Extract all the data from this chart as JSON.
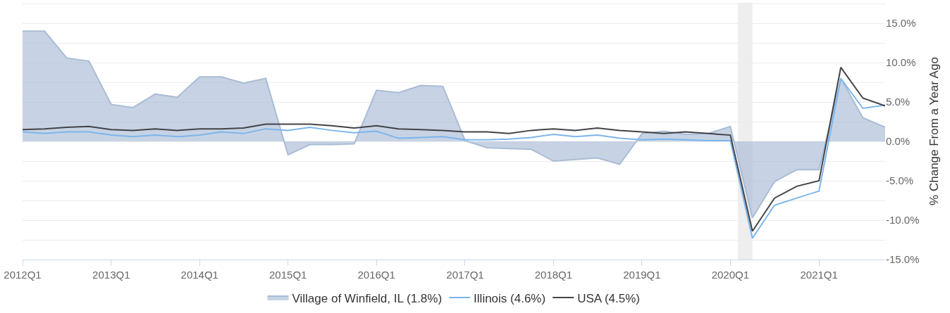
{
  "chart_data": {
    "type": "line",
    "ylabel": "% Change From a Year Ago",
    "x": [
      "2012-01",
      "2012-04",
      "2012-07",
      "2012-10",
      "2013-01",
      "2013-04",
      "2013-07",
      "2013-10",
      "2014-01",
      "2014-04",
      "2014-07",
      "2014-10",
      "2015-01",
      "2015-04",
      "2015-07",
      "2015-10",
      "2016-01",
      "2016-04",
      "2016-07",
      "2016-10",
      "2017-01",
      "2017-04",
      "2017-07",
      "2017-10",
      "2018-01",
      "2018-04",
      "2018-07",
      "2018-10",
      "2019-01",
      "2019-04",
      "2019-07",
      "2019-10",
      "2020-01",
      "2020-04",
      "2020-07",
      "2020-10",
      "2021-01",
      "2021-04",
      "2021-07",
      "2021-10"
    ],
    "series": [
      {
        "name": "Village of Winfield, IL (1.8%)",
        "type": "area",
        "color": "#a9bcd6",
        "values": [
          14.0,
          14.0,
          10.6,
          10.2,
          4.7,
          4.3,
          6.0,
          5.6,
          8.2,
          8.2,
          7.4,
          8.0,
          -1.7,
          -0.4,
          -0.4,
          -0.3,
          6.5,
          6.2,
          7.1,
          7.0,
          0.1,
          -0.8,
          -0.9,
          -1.0,
          -2.5,
          -2.3,
          -2.1,
          -2.9,
          1.0,
          1.3,
          0.9,
          1.0,
          1.9,
          -9.7,
          -5.1,
          -3.6,
          -3.6,
          8.0,
          3.0,
          1.8
        ]
      },
      {
        "name": "Illinois (4.6%)",
        "color": "#7cb5ec",
        "values": [
          1.2,
          1.0,
          1.2,
          1.2,
          0.8,
          0.6,
          0.8,
          0.6,
          0.8,
          1.2,
          1.0,
          1.6,
          1.4,
          1.8,
          1.4,
          1.1,
          1.3,
          0.4,
          0.5,
          0.6,
          0.2,
          0.2,
          0.3,
          0.5,
          0.9,
          0.6,
          0.8,
          0.4,
          0.2,
          0.3,
          0.2,
          0.1,
          0.1,
          -12.3,
          -8.1,
          -7.2,
          -6.3,
          8.0,
          4.2,
          4.6
        ]
      },
      {
        "name": "USA (4.5%)",
        "color": "#434348",
        "values": [
          1.5,
          1.6,
          1.8,
          1.9,
          1.5,
          1.4,
          1.6,
          1.4,
          1.6,
          1.6,
          1.7,
          2.2,
          2.2,
          2.2,
          2.0,
          1.7,
          2.0,
          1.6,
          1.5,
          1.4,
          1.2,
          1.2,
          1.0,
          1.4,
          1.6,
          1.4,
          1.7,
          1.4,
          1.2,
          1.0,
          1.2,
          1.0,
          0.8,
          -11.4,
          -7.2,
          -5.7,
          -5.0,
          9.4,
          5.5,
          4.5
        ]
      }
    ],
    "xlim": [
      "2012-01",
      "2021-10"
    ],
    "xticks": [
      {
        "value": "2012-01",
        "label": "2012Q1"
      },
      {
        "value": "2013-01",
        "label": "2013Q1"
      },
      {
        "value": "2014-01",
        "label": "2014Q1"
      },
      {
        "value": "2015-01",
        "label": "2015Q1"
      },
      {
        "value": "2016-01",
        "label": "2016Q1"
      },
      {
        "value": "2017-01",
        "label": "2017Q1"
      },
      {
        "value": "2018-01",
        "label": "2018Q1"
      },
      {
        "value": "2019-01",
        "label": "2019Q1"
      },
      {
        "value": "2020-01",
        "label": "2020Q1"
      },
      {
        "value": "2021-01",
        "label": "2021Q1"
      }
    ],
    "ylim": [
      -15,
      17.6
    ],
    "yticks": [
      {
        "value": -15,
        "label": "-15.0%"
      },
      {
        "value": -12.5,
        "label": null
      },
      {
        "value": -10,
        "label": "-10.0%"
      },
      {
        "value": -7.5,
        "label": null
      },
      {
        "value": -5,
        "label": "-5.0%"
      },
      {
        "value": -2.5,
        "label": null
      },
      {
        "value": 0,
        "label": "0.0%"
      },
      {
        "value": 2.5,
        "label": null
      },
      {
        "value": 5,
        "label": "5.0%"
      },
      {
        "value": 7.5,
        "label": null
      },
      {
        "value": 10,
        "label": "10.0%"
      },
      {
        "value": 12.5,
        "label": null
      },
      {
        "value": 15,
        "label": "15.0%"
      },
      {
        "value": 17.5,
        "label": null
      }
    ],
    "bands": [
      {
        "axis": "x",
        "from": "2020-02",
        "to": "2020-04",
        "color": "#eeeeee"
      }
    ],
    "grid": "y",
    "legend": "bottom"
  }
}
